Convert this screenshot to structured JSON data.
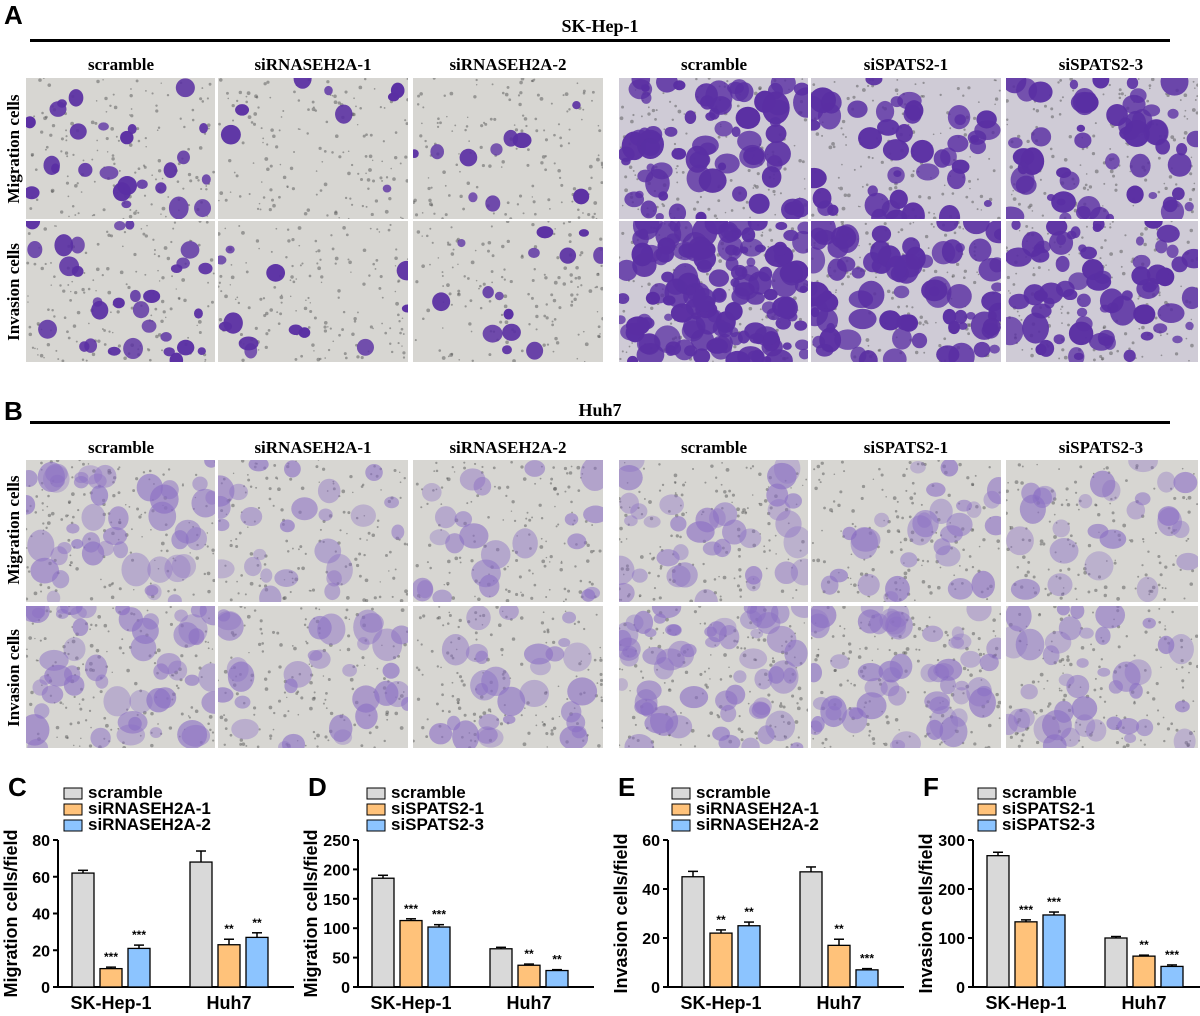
{
  "panels": {
    "A": {
      "letter": "A",
      "cell_line": "SK-Hep-1"
    },
    "B": {
      "letter": "B",
      "cell_line": "Huh7"
    }
  },
  "columns": [
    "scramble",
    "siRNASEH2A-1",
    "siRNASEH2A-2",
    "scramble",
    "siSPATS2-1",
    "siSPATS2-3"
  ],
  "rows": [
    "Migration cells",
    "Invasion cells"
  ],
  "colors": {
    "scramble": "#d9d9d9",
    "sirna1": "#ffc27a",
    "sirna2": "#8cc4ff",
    "stain_sk": "#5a2fa3",
    "stain_huh": "#8b6fc4"
  },
  "chart_data": [
    {
      "letter": "C",
      "type": "bar",
      "ylabel": "Migration cells/field",
      "categories": [
        "SK-Hep-1",
        "Huh7"
      ],
      "ylim": [
        0,
        80
      ],
      "yticks": [
        0,
        20,
        40,
        60,
        80
      ],
      "series": [
        {
          "name": "scramble",
          "values": [
            62,
            68
          ],
          "errors": [
            1.5,
            6
          ],
          "sig": [
            "",
            ""
          ]
        },
        {
          "name": "siRNASEH2A-1",
          "values": [
            10,
            23
          ],
          "errors": [
            0.8,
            3
          ],
          "sig": [
            "***",
            "**"
          ]
        },
        {
          "name": "siRNASEH2A-2",
          "values": [
            21,
            27
          ],
          "errors": [
            1.8,
            2.5
          ],
          "sig": [
            "***",
            "**"
          ]
        }
      ]
    },
    {
      "letter": "D",
      "type": "bar",
      "ylabel": "Migration cells/field",
      "categories": [
        "SK-Hep-1",
        "Huh7"
      ],
      "ylim": [
        0,
        250
      ],
      "yticks": [
        0,
        50,
        100,
        150,
        200,
        250
      ],
      "series": [
        {
          "name": "scramble",
          "values": [
            185,
            65
          ],
          "errors": [
            5,
            2.5
          ],
          "sig": [
            "",
            ""
          ]
        },
        {
          "name": "siSPATS2-1",
          "values": [
            113,
            37
          ],
          "errors": [
            3,
            2
          ],
          "sig": [
            "***",
            "**"
          ]
        },
        {
          "name": "siSPATS2-3",
          "values": [
            102,
            28
          ],
          "errors": [
            4,
            1.5
          ],
          "sig": [
            "***",
            "**"
          ]
        }
      ]
    },
    {
      "letter": "E",
      "type": "bar",
      "ylabel": "Invasion cells/field",
      "categories": [
        "SK-Hep-1",
        "Huh7"
      ],
      "ylim": [
        0,
        60
      ],
      "yticks": [
        0,
        20,
        40,
        60
      ],
      "series": [
        {
          "name": "scramble",
          "values": [
            45,
            47
          ],
          "errors": [
            2.2,
            2
          ],
          "sig": [
            "",
            ""
          ]
        },
        {
          "name": "siRNASEH2A-1",
          "values": [
            22,
            17
          ],
          "errors": [
            1.3,
            2.5
          ],
          "sig": [
            "**",
            "**"
          ]
        },
        {
          "name": "siRNASEH2A-2",
          "values": [
            25,
            7
          ],
          "errors": [
            1.5,
            0.5
          ],
          "sig": [
            "**",
            "***"
          ]
        }
      ]
    },
    {
      "letter": "F",
      "type": "bar",
      "ylabel": "Invasion cells/field",
      "categories": [
        "SK-Hep-1",
        "Huh7"
      ],
      "ylim": [
        0,
        300
      ],
      "yticks": [
        0,
        100,
        200,
        300
      ],
      "series": [
        {
          "name": "scramble",
          "values": [
            268,
            100
          ],
          "errors": [
            7,
            3
          ],
          "sig": [
            "",
            ""
          ]
        },
        {
          "name": "siSPATS2-1",
          "values": [
            133,
            63
          ],
          "errors": [
            4,
            2
          ],
          "sig": [
            "***",
            "**"
          ]
        },
        {
          "name": "siSPATS2-3",
          "values": [
            147,
            42
          ],
          "errors": [
            6,
            3
          ],
          "sig": [
            "***",
            "***"
          ]
        }
      ]
    }
  ]
}
